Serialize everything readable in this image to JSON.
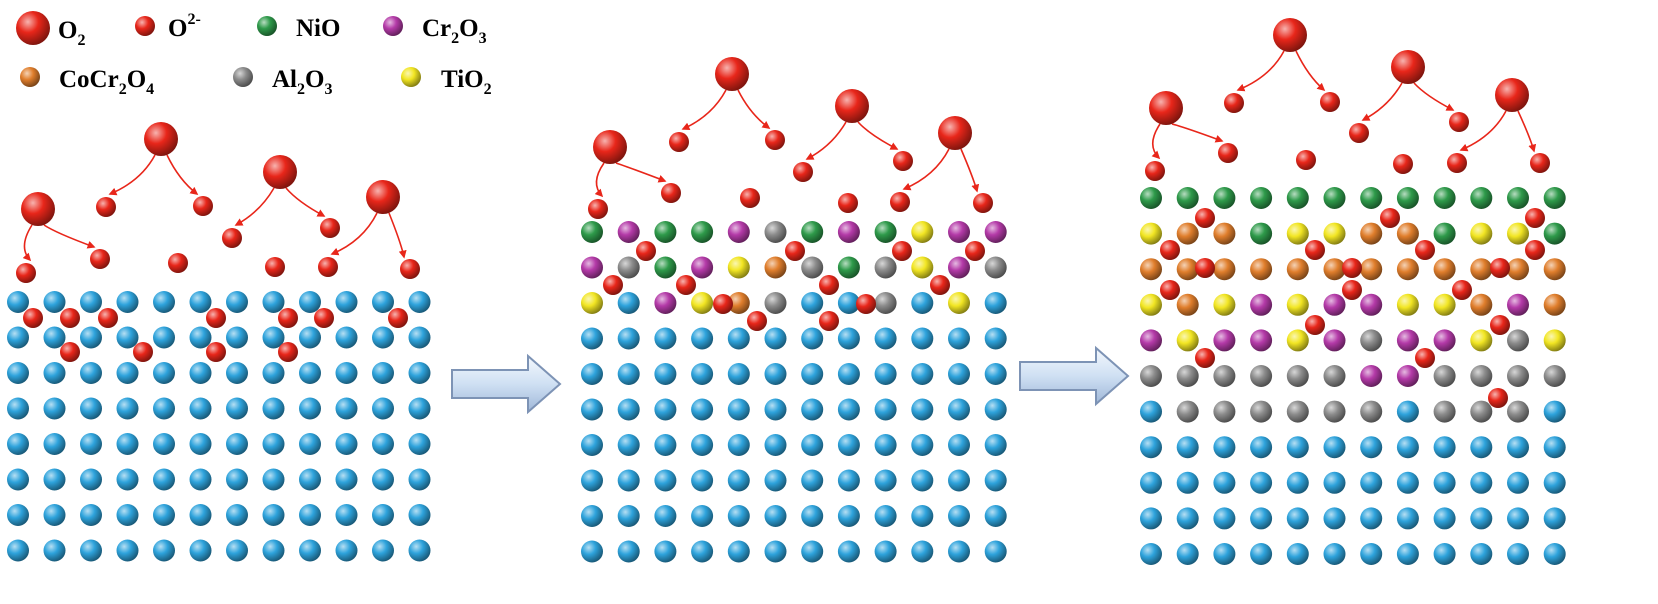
{
  "legend": {
    "items": [
      {
        "id": "o2",
        "base": "O",
        "sub": "2",
        "sup": "",
        "tail": "",
        "color": "#e8261a",
        "size": "large"
      },
      {
        "id": "o2minus",
        "base": "O",
        "sub": "",
        "sup": "2-",
        "tail": "",
        "color": "#e8261a",
        "size": "small"
      },
      {
        "id": "nio",
        "base": "NiO",
        "sub": "",
        "sup": "",
        "tail": "",
        "color": "#2e9a4a",
        "size": "small"
      },
      {
        "id": "cr2o3",
        "base": "Cr",
        "sub": "2",
        "sup": "",
        "tail": "O3",
        "color": "#b43aa8",
        "size": "small"
      },
      {
        "id": "cocr2o4",
        "base": "CoCr",
        "sub": "2",
        "sup": "",
        "tail": "O4",
        "color": "#e07e2c",
        "size": "small"
      },
      {
        "id": "al2o3",
        "base": "Al",
        "sub": "2",
        "sup": "",
        "tail": "O3",
        "color": "#8c8c8c",
        "size": "small"
      },
      {
        "id": "tio2",
        "base": "TiO",
        "sub": "2",
        "sup": "",
        "tail": "",
        "color": "#f2e623",
        "size": "small"
      }
    ]
  },
  "colors": {
    "substrate": "#2ea3dc",
    "oxygen": "#e8261a",
    "arrow_edge": "#7d93b5",
    "arrow_fill": "#cfe0f3"
  },
  "panels": [
    {
      "stage": 1,
      "oxide_rows": [],
      "substrate_rows": 8
    },
    {
      "stage": 2,
      "oxide_rows": [
        [
          "G",
          "P",
          "G",
          "G",
          "P",
          "A",
          "G",
          "P",
          "G",
          "Y",
          "P",
          "P"
        ],
        [
          "P",
          "A",
          "G",
          "P",
          "Y",
          "O",
          "A",
          "G",
          "A",
          "Y",
          "P",
          "A"
        ],
        [
          "Y",
          "B",
          "P",
          "Y",
          "O",
          "A",
          "B",
          "B",
          "A",
          "B",
          "Y",
          "B"
        ]
      ],
      "substrate_rows": 7
    },
    {
      "stage": 3,
      "oxide_rows": [
        [
          "G",
          "G",
          "G",
          "G",
          "G",
          "G",
          "G",
          "G",
          "G",
          "G",
          "G",
          "G"
        ],
        [
          "Y",
          "O",
          "O",
          "G",
          "Y",
          "Y",
          "O",
          "O",
          "G",
          "Y",
          "Y",
          "G"
        ],
        [
          "O",
          "O",
          "O",
          "O",
          "O",
          "O",
          "O",
          "O",
          "O",
          "O",
          "O",
          "O"
        ],
        [
          "Y",
          "O",
          "Y",
          "P",
          "Y",
          "P",
          "P",
          "Y",
          "Y",
          "O",
          "P",
          "O"
        ],
        [
          "P",
          "Y",
          "P",
          "P",
          "Y",
          "P",
          "A",
          "P",
          "P",
          "Y",
          "A",
          "Y"
        ],
        [
          "A",
          "A",
          "A",
          "A",
          "A",
          "A",
          "P",
          "P",
          "A",
          "A",
          "A",
          "A"
        ],
        [
          "B",
          "A",
          "A",
          "A",
          "A",
          "A",
          "A",
          "B",
          "A",
          "A",
          "A",
          "B"
        ]
      ],
      "substrate_rows": 4
    }
  ]
}
